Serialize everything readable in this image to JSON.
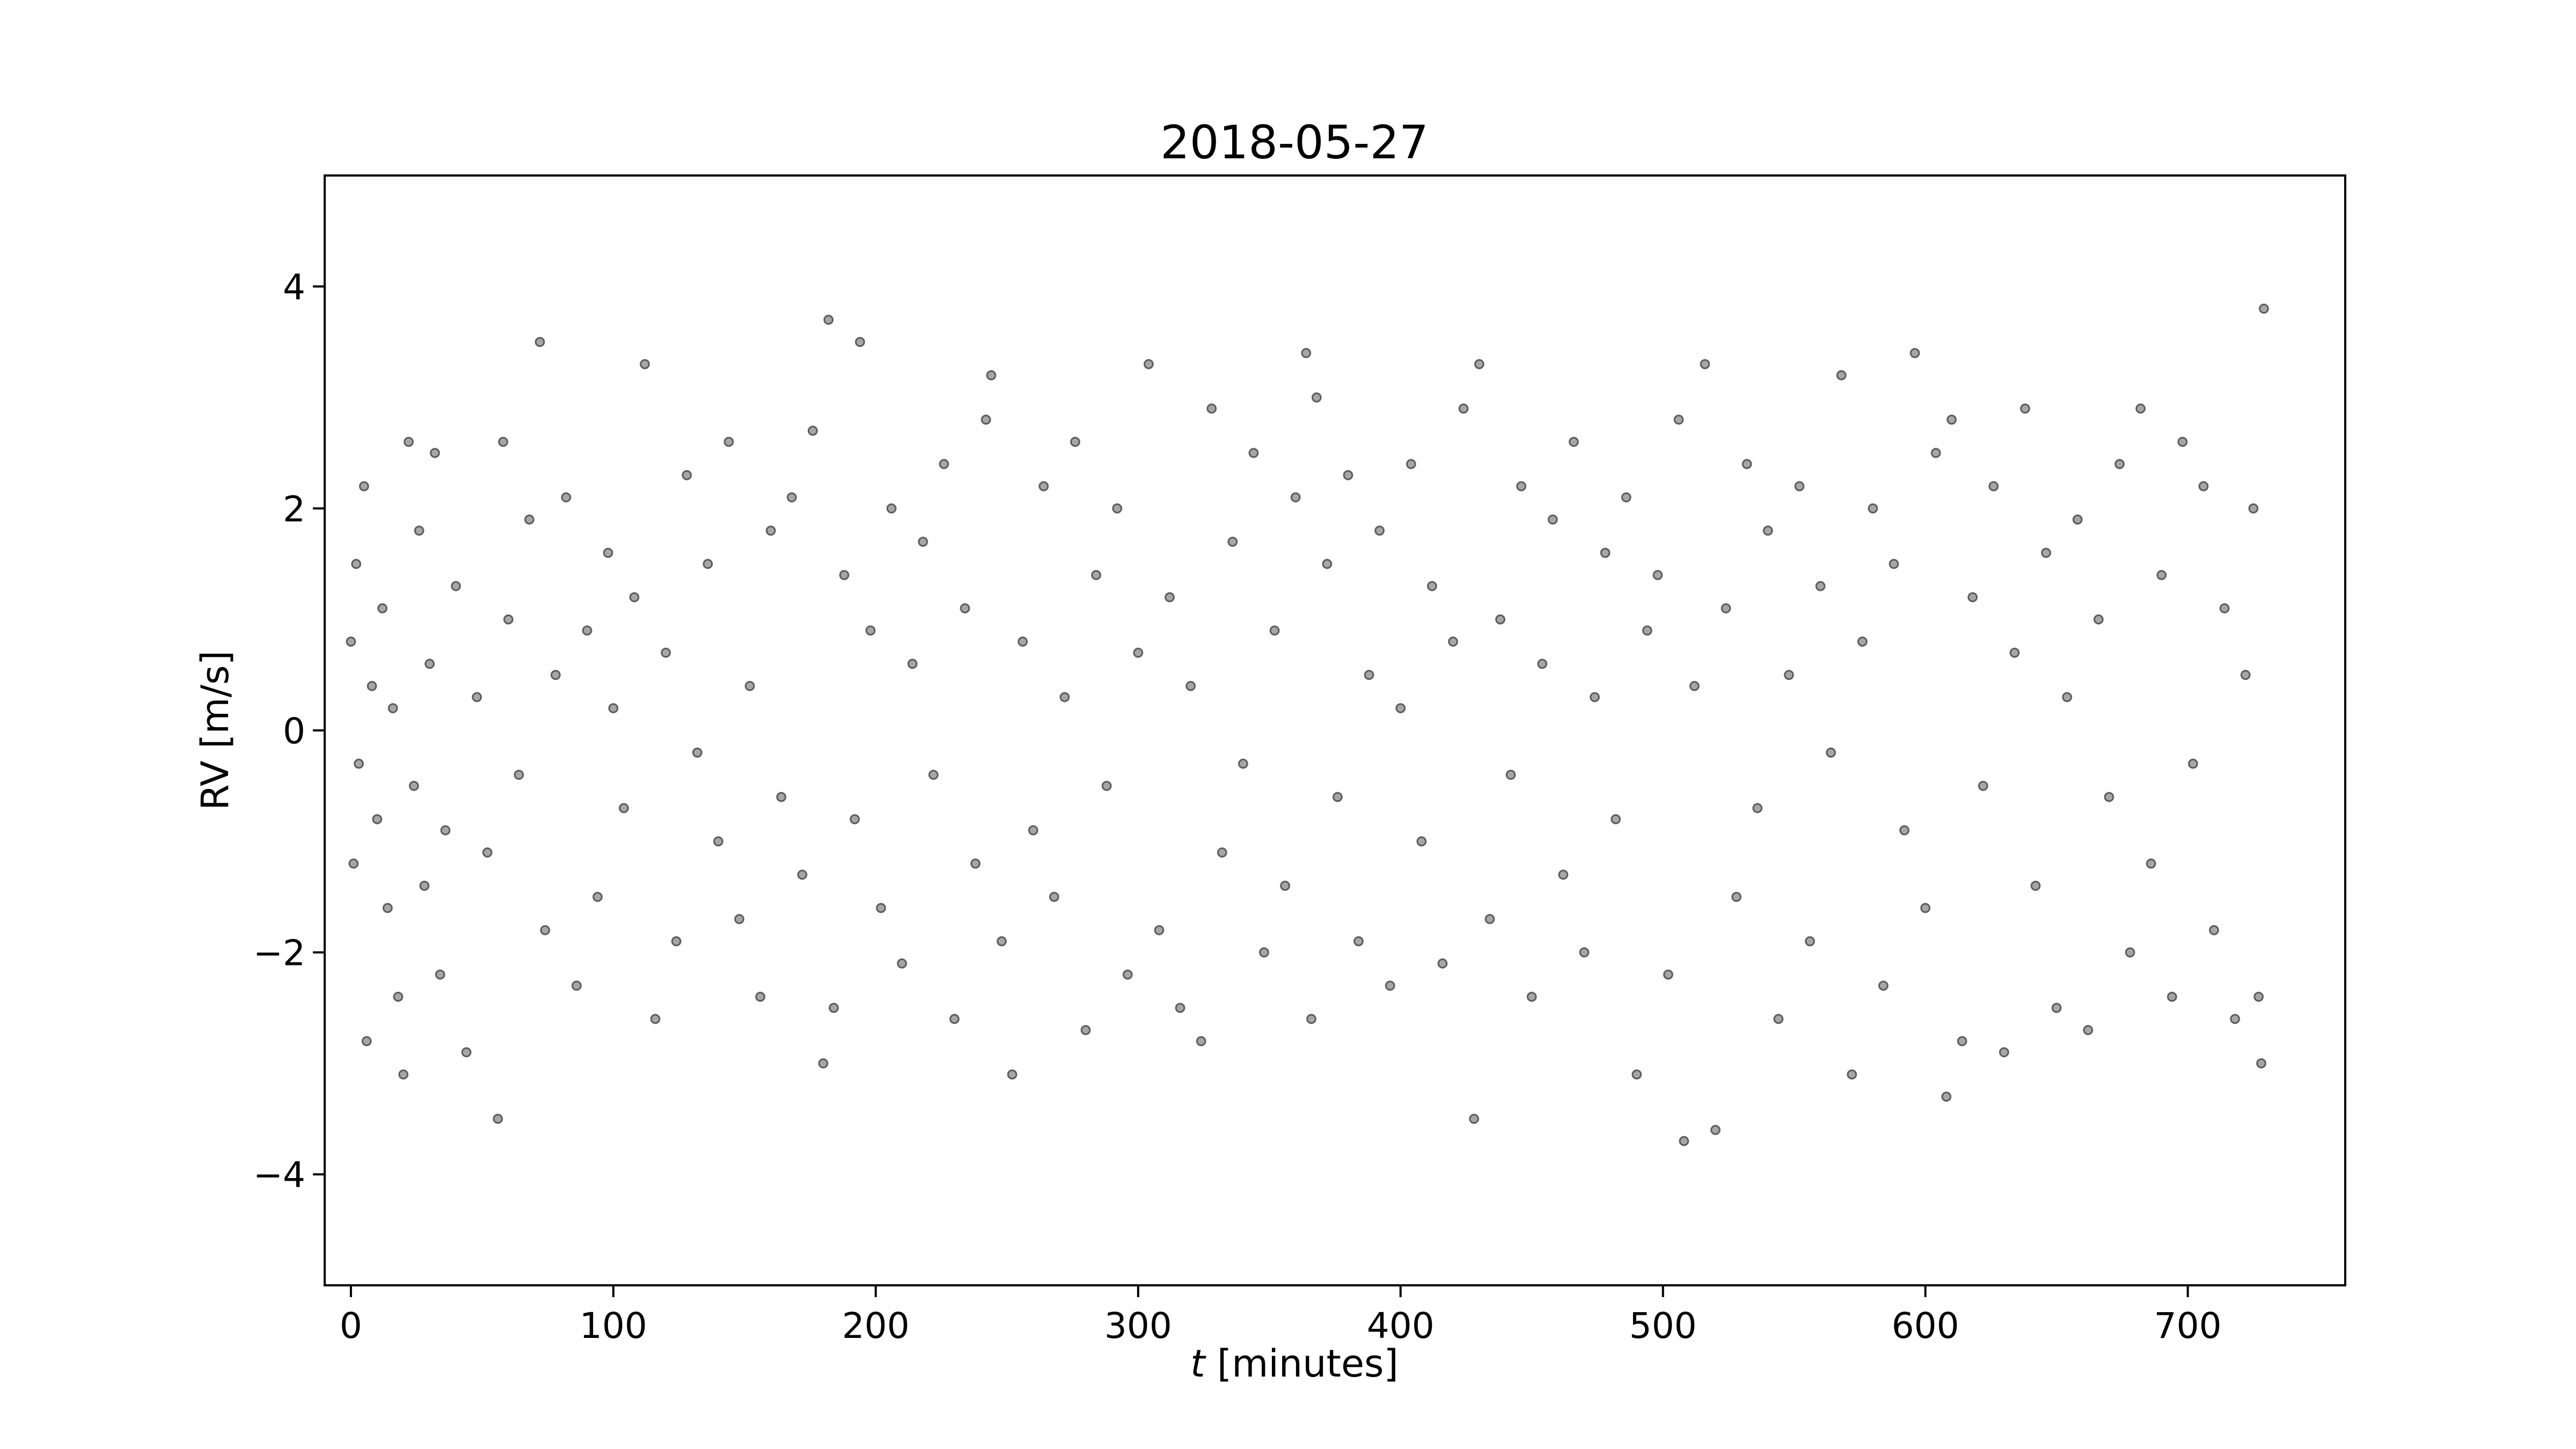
{
  "chart_data": {
    "type": "scatter",
    "title": "2018-05-27",
    "xlabel_italic": "t",
    "xlabel_rest": " [minutes]",
    "ylabel": "RV [m/s]",
    "xlim": [
      -10,
      760
    ],
    "ylim": [
      -5,
      5
    ],
    "x_ticks": [
      {
        "value": 0,
        "label": "0"
      },
      {
        "value": 100,
        "label": "100"
      },
      {
        "value": 200,
        "label": "200"
      },
      {
        "value": 300,
        "label": "300"
      },
      {
        "value": 400,
        "label": "400"
      },
      {
        "value": 500,
        "label": "500"
      },
      {
        "value": 600,
        "label": "600"
      },
      {
        "value": 700,
        "label": "700"
      }
    ],
    "y_ticks": [
      {
        "value": -4,
        "label": "−4"
      },
      {
        "value": -2,
        "label": "−2"
      },
      {
        "value": 0,
        "label": "0"
      },
      {
        "value": 2,
        "label": "2"
      },
      {
        "value": 4,
        "label": "4"
      }
    ],
    "grid": false,
    "legend": "none",
    "marker_color": "#000000",
    "series": [
      {
        "points": [
          [
            0,
            0.8
          ],
          [
            1,
            -1.2
          ],
          [
            2,
            1.5
          ],
          [
            3,
            -0.3
          ],
          [
            5,
            2.2
          ],
          [
            6,
            -2.8
          ],
          [
            8,
            0.4
          ],
          [
            10,
            -0.8
          ],
          [
            12,
            1.1
          ],
          [
            14,
            -1.6
          ],
          [
            16,
            0.2
          ],
          [
            18,
            -2.4
          ],
          [
            20,
            -3.1
          ],
          [
            22,
            2.6
          ],
          [
            24,
            -0.5
          ],
          [
            26,
            1.8
          ],
          [
            28,
            -1.4
          ],
          [
            30,
            0.6
          ],
          [
            32,
            2.5
          ],
          [
            34,
            -2.2
          ],
          [
            36,
            -0.9
          ],
          [
            40,
            1.3
          ],
          [
            44,
            -2.9
          ],
          [
            48,
            0.3
          ],
          [
            52,
            -1.1
          ],
          [
            56,
            -3.5
          ],
          [
            58,
            2.6
          ],
          [
            60,
            1.0
          ],
          [
            64,
            -0.4
          ],
          [
            68,
            1.9
          ],
          [
            72,
            3.5
          ],
          [
            74,
            -1.8
          ],
          [
            78,
            0.5
          ],
          [
            82,
            2.1
          ],
          [
            86,
            -2.3
          ],
          [
            90,
            0.9
          ],
          [
            94,
            -1.5
          ],
          [
            98,
            1.6
          ],
          [
            100,
            0.2
          ],
          [
            104,
            -0.7
          ],
          [
            108,
            1.2
          ],
          [
            112,
            3.3
          ],
          [
            116,
            -2.6
          ],
          [
            120,
            0.7
          ],
          [
            124,
            -1.9
          ],
          [
            128,
            2.3
          ],
          [
            132,
            -0.2
          ],
          [
            136,
            1.5
          ],
          [
            140,
            -1.0
          ],
          [
            144,
            2.6
          ],
          [
            148,
            -1.7
          ],
          [
            152,
            0.4
          ],
          [
            156,
            -2.4
          ],
          [
            160,
            1.8
          ],
          [
            164,
            -0.6
          ],
          [
            168,
            2.1
          ],
          [
            172,
            -1.3
          ],
          [
            176,
            2.7
          ],
          [
            180,
            -3.0
          ],
          [
            182,
            3.7
          ],
          [
            184,
            -2.5
          ],
          [
            188,
            1.4
          ],
          [
            192,
            -0.8
          ],
          [
            194,
            3.5
          ],
          [
            198,
            0.9
          ],
          [
            202,
            -1.6
          ],
          [
            206,
            2.0
          ],
          [
            210,
            -2.1
          ],
          [
            214,
            0.6
          ],
          [
            218,
            1.7
          ],
          [
            222,
            -0.4
          ],
          [
            226,
            2.4
          ],
          [
            230,
            -2.6
          ],
          [
            234,
            1.1
          ],
          [
            238,
            -1.2
          ],
          [
            242,
            2.8
          ],
          [
            244,
            3.2
          ],
          [
            248,
            -1.9
          ],
          [
            252,
            -3.1
          ],
          [
            256,
            0.8
          ],
          [
            260,
            -0.9
          ],
          [
            264,
            2.2
          ],
          [
            268,
            -1.5
          ],
          [
            272,
            0.3
          ],
          [
            276,
            2.6
          ],
          [
            280,
            -2.7
          ],
          [
            284,
            1.4
          ],
          [
            288,
            -0.5
          ],
          [
            292,
            2.0
          ],
          [
            296,
            -2.2
          ],
          [
            300,
            0.7
          ],
          [
            304,
            3.3
          ],
          [
            308,
            -1.8
          ],
          [
            312,
            1.2
          ],
          [
            316,
            -2.5
          ],
          [
            320,
            0.4
          ],
          [
            324,
            -2.8
          ],
          [
            328,
            2.9
          ],
          [
            332,
            -1.1
          ],
          [
            336,
            1.7
          ],
          [
            340,
            -0.3
          ],
          [
            344,
            2.5
          ],
          [
            348,
            -2.0
          ],
          [
            352,
            0.9
          ],
          [
            356,
            -1.4
          ],
          [
            360,
            2.1
          ],
          [
            364,
            3.4
          ],
          [
            366,
            -2.6
          ],
          [
            368,
            3.0
          ],
          [
            372,
            1.5
          ],
          [
            376,
            -0.6
          ],
          [
            380,
            2.3
          ],
          [
            384,
            -1.9
          ],
          [
            388,
            0.5
          ],
          [
            392,
            1.8
          ],
          [
            396,
            -2.3
          ],
          [
            400,
            0.2
          ],
          [
            404,
            2.4
          ],
          [
            408,
            -1.0
          ],
          [
            412,
            1.3
          ],
          [
            416,
            -2.1
          ],
          [
            420,
            0.8
          ],
          [
            424,
            2.9
          ],
          [
            428,
            -3.5
          ],
          [
            430,
            3.3
          ],
          [
            434,
            -1.7
          ],
          [
            438,
            1.0
          ],
          [
            442,
            -0.4
          ],
          [
            446,
            2.2
          ],
          [
            450,
            -2.4
          ],
          [
            454,
            0.6
          ],
          [
            458,
            1.9
          ],
          [
            462,
            -1.3
          ],
          [
            466,
            2.6
          ],
          [
            470,
            -2.0
          ],
          [
            474,
            0.3
          ],
          [
            478,
            1.6
          ],
          [
            482,
            -0.8
          ],
          [
            486,
            2.1
          ],
          [
            490,
            -3.1
          ],
          [
            494,
            0.9
          ],
          [
            498,
            1.4
          ],
          [
            502,
            -2.2
          ],
          [
            506,
            2.8
          ],
          [
            508,
            -3.7
          ],
          [
            512,
            0.4
          ],
          [
            516,
            3.3
          ],
          [
            520,
            -3.6
          ],
          [
            524,
            1.1
          ],
          [
            528,
            -1.5
          ],
          [
            532,
            2.4
          ],
          [
            536,
            -0.7
          ],
          [
            540,
            1.8
          ],
          [
            544,
            -2.6
          ],
          [
            548,
            0.5
          ],
          [
            552,
            2.2
          ],
          [
            556,
            -1.9
          ],
          [
            560,
            1.3
          ],
          [
            564,
            -0.2
          ],
          [
            568,
            3.2
          ],
          [
            572,
            -3.1
          ],
          [
            576,
            0.8
          ],
          [
            580,
            2.0
          ],
          [
            584,
            -2.3
          ],
          [
            588,
            1.5
          ],
          [
            592,
            -0.9
          ],
          [
            596,
            3.4
          ],
          [
            600,
            -1.6
          ],
          [
            604,
            2.5
          ],
          [
            608,
            -3.3
          ],
          [
            610,
            2.8
          ],
          [
            614,
            -2.8
          ],
          [
            618,
            1.2
          ],
          [
            622,
            -0.5
          ],
          [
            626,
            2.2
          ],
          [
            630,
            -2.9
          ],
          [
            634,
            0.7
          ],
          [
            638,
            2.9
          ],
          [
            642,
            -1.4
          ],
          [
            646,
            1.6
          ],
          [
            650,
            -2.5
          ],
          [
            654,
            0.3
          ],
          [
            658,
            1.9
          ],
          [
            662,
            -2.7
          ],
          [
            666,
            1.0
          ],
          [
            670,
            -0.6
          ],
          [
            674,
            2.4
          ],
          [
            678,
            -2.0
          ],
          [
            682,
            2.9
          ],
          [
            686,
            -1.2
          ],
          [
            690,
            1.4
          ],
          [
            694,
            -2.4
          ],
          [
            698,
            2.6
          ],
          [
            702,
            -0.3
          ],
          [
            706,
            2.2
          ],
          [
            710,
            -1.8
          ],
          [
            714,
            1.1
          ],
          [
            718,
            -2.6
          ],
          [
            722,
            0.5
          ],
          [
            725,
            2.0
          ],
          [
            727,
            -2.4
          ],
          [
            728,
            -3.0
          ],
          [
            729,
            3.8
          ]
        ]
      }
    ]
  }
}
